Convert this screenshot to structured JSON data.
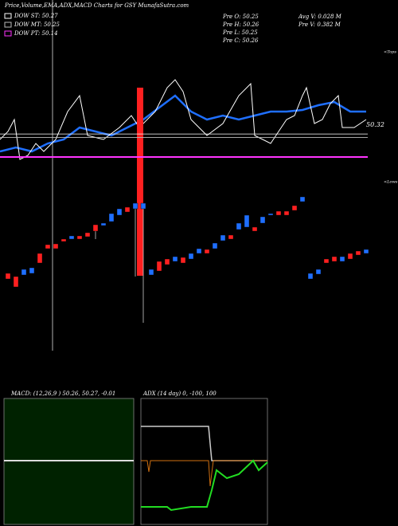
{
  "header": {
    "title": "Price,Volume,EMA,ADX,MACD Charts for GSY MunafaSutra.com",
    "pre_o": "Pre  O: 50.25",
    "pre_h": "Pre  H: 50.26",
    "pre_l": "Pre  L: 50.25",
    "pre_c": "Pre  C: 50.26",
    "avg_v": "Avg V: 0.028  M",
    "pre_v": "Pre  V: 0.382  M",
    "tops": "<Tops",
    "lows": "<Lows"
  },
  "levels": {
    "ylim": [
      50.14,
      50.32
    ],
    "last": 50.32,
    "items": [
      {
        "label": "DOW ST: 50.27",
        "value": 50.27,
        "color": "#ffffff"
      },
      {
        "label": "DOW MT: 50.25",
        "value": 50.25,
        "color": "#bbbbbb"
      },
      {
        "label": "DOW PT: 50.14",
        "value": 50.14,
        "color": "#ff33ff"
      }
    ]
  },
  "chart_data": [
    {
      "type": "candlestick",
      "ylim": [
        50.15,
        50.35
      ],
      "up_color": "#1f6fff",
      "down_color": "#ff2020",
      "open": [
        50.227,
        50.223,
        50.225,
        50.227,
        50.252,
        50.263,
        50.264,
        50.27,
        50.27,
        50.274,
        50.278,
        50.288,
        50.287,
        50.292,
        50.3,
        50.31,
        50.308,
        50.308,
        50.225,
        50.242,
        50.245,
        50.242,
        50.247,
        50.245,
        50.252,
        50.257,
        50.258,
        50.268,
        50.275,
        50.282,
        50.285,
        50.285,
        50.29,
        50.3,
        50.305,
        50.305,
        50.312,
        50.317,
        50.22,
        50.226,
        50.245,
        50.248,
        50.242,
        50.252,
        50.255,
        50.252
      ],
      "close": [
        50.22,
        50.21,
        50.232,
        50.234,
        50.24,
        50.258,
        50.258,
        50.267,
        50.274,
        50.27,
        50.273,
        50.28,
        50.29,
        50.302,
        50.308,
        50.304,
        50.315,
        50.315,
        50.232,
        50.23,
        50.238,
        50.248,
        50.24,
        50.252,
        50.258,
        50.252,
        50.265,
        50.275,
        50.27,
        50.29,
        50.3,
        50.28,
        50.298,
        50.302,
        50.3,
        50.3,
        50.306,
        50.323,
        50.227,
        50.232,
        50.24,
        50.242,
        50.248,
        50.245,
        50.25,
        50.257
      ],
      "high": [
        50.227,
        50.223,
        50.232,
        50.234,
        50.252,
        50.263,
        50.264,
        50.27,
        50.274,
        50.274,
        50.278,
        50.288,
        50.29,
        50.302,
        50.308,
        50.31,
        50.315,
        50.315,
        50.232,
        50.242,
        50.245,
        50.248,
        50.247,
        50.252,
        50.258,
        50.257,
        50.265,
        50.275,
        50.275,
        50.29,
        50.3,
        50.285,
        50.298,
        50.302,
        50.305,
        50.305,
        50.312,
        50.323,
        50.227,
        50.232,
        50.245,
        50.248,
        50.248,
        50.252,
        50.255,
        50.257
      ],
      "low": [
        50.22,
        50.21,
        50.225,
        50.227,
        50.24,
        50.258,
        50.258,
        50.267,
        50.27,
        50.27,
        50.273,
        50.27,
        50.287,
        50.292,
        50.3,
        50.304,
        50.223,
        50.165,
        50.225,
        50.23,
        50.238,
        50.242,
        50.24,
        50.245,
        50.252,
        50.252,
        50.258,
        50.268,
        50.27,
        50.282,
        50.285,
        50.28,
        50.29,
        50.3,
        50.3,
        50.3,
        50.306,
        50.317,
        50.22,
        50.226,
        50.24,
        50.242,
        50.242,
        50.245,
        50.25,
        50.252
      ]
    }
  ],
  "panels": {
    "macd": "MACD: (12,26,9 ) 50.26,  50.27,  -0.01",
    "adx": "ADX         (14  day) 0,  -100,  100"
  }
}
